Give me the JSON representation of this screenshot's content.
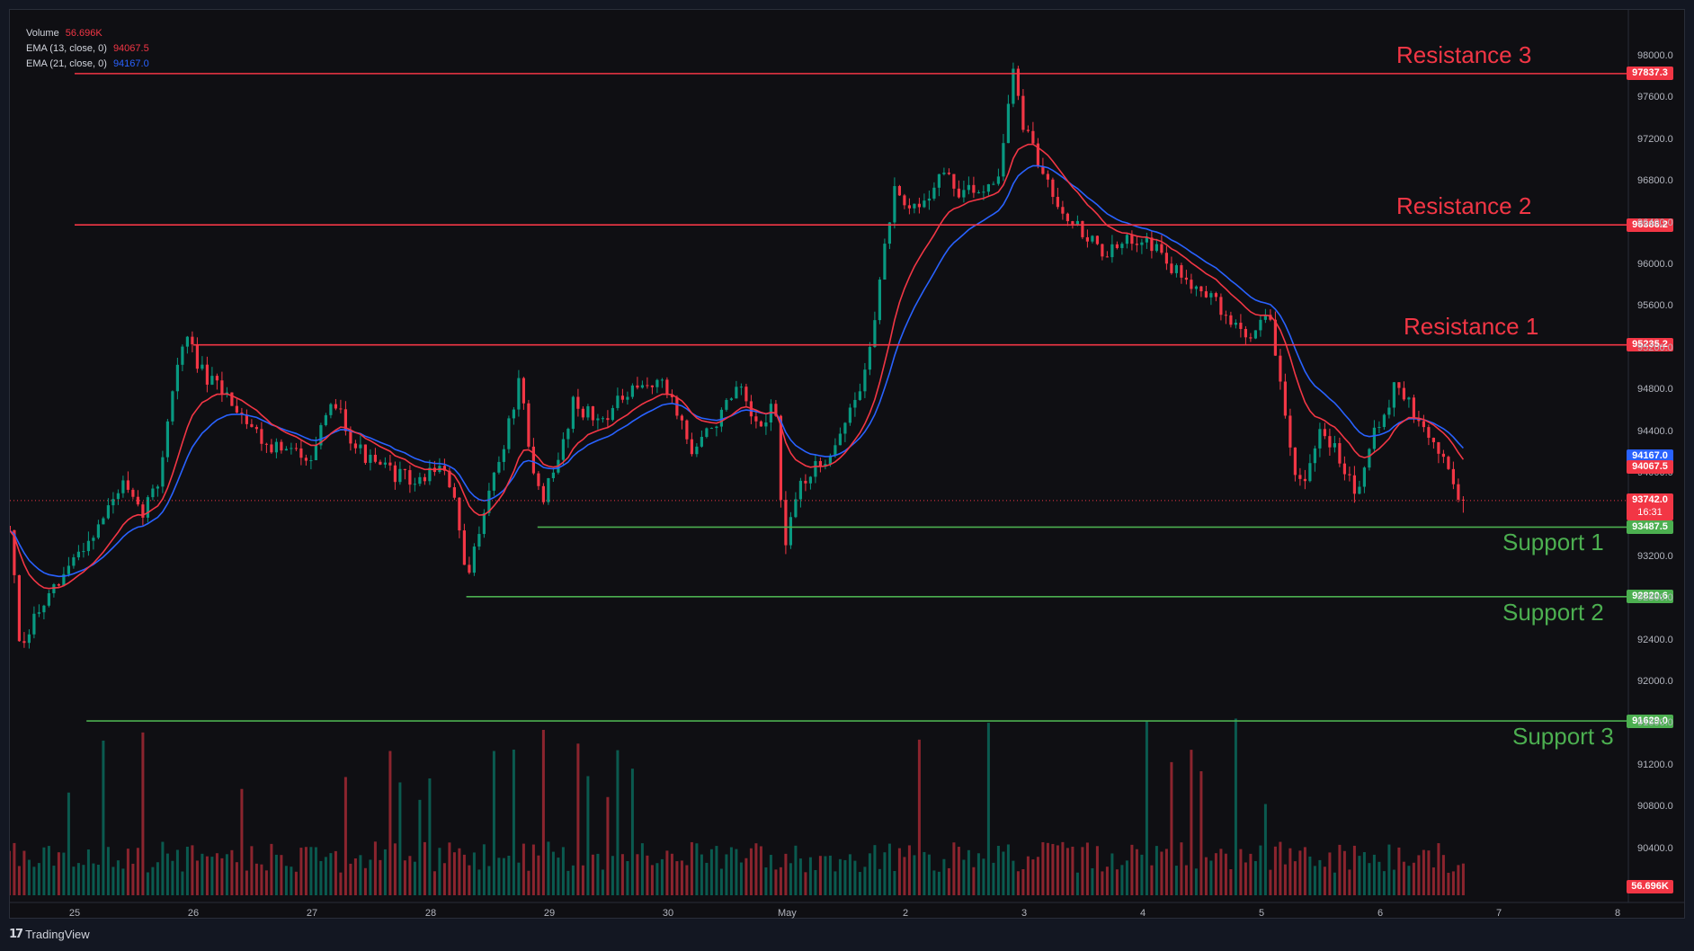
{
  "branding": {
    "logo_mark": "𝟭𝟳",
    "name": "TradingView"
  },
  "legend": [
    {
      "label": "Volume",
      "value": "56.696K",
      "color": "#f23645"
    },
    {
      "label": "EMA (13, close, 0)",
      "value": "94067.5",
      "color": "#f23645"
    },
    {
      "label": "EMA (21, close, 0)",
      "value": "94167.0",
      "color": "#2962ff"
    }
  ],
  "colors": {
    "up": "#089981",
    "down": "#f23645",
    "resistance": "#f23645",
    "support": "#4caf50",
    "ema13": "#f23645",
    "ema21": "#2962ff"
  },
  "chart_data": {
    "type": "candlestick",
    "x_ticks": [
      "25",
      "26",
      "27",
      "28",
      "29",
      "30",
      "May",
      "2",
      "3",
      "4",
      "5",
      "6",
      "7",
      "8"
    ],
    "y_ticks": [
      "98000.0",
      "97600.0",
      "97200.0",
      "96800.0",
      "96400.0",
      "96000.0",
      "95600.0",
      "95200.0",
      "94800.0",
      "94400.0",
      "94000.0",
      "93600.0",
      "93200.0",
      "92800.0",
      "92400.0",
      "92000.0",
      "91600.0",
      "91200.0",
      "90800.0",
      "90400.0"
    ],
    "ylim": [
      90000,
      98100
    ],
    "levels": [
      {
        "name": "Resistance 3",
        "value": 97837.3,
        "tag": "97837.3",
        "kind": "resistance",
        "start_day": 0.0
      },
      {
        "name": "Resistance 2",
        "value": 96386.2,
        "tag": "96386.2",
        "kind": "resistance",
        "start_day": 0.0
      },
      {
        "name": "Resistance 1",
        "value": 95235.2,
        "tag": "95235.2",
        "kind": "resistance",
        "start_day": 1.0
      },
      {
        "name": "Support 1",
        "value": 93487.5,
        "tag": "93487.5",
        "kind": "support",
        "start_day": 3.9
      },
      {
        "name": "Support 2",
        "value": 92820.6,
        "tag": "92820.6",
        "kind": "support",
        "start_day": 3.3
      },
      {
        "name": "Support 3",
        "value": 91629.0,
        "tag": "91629.0",
        "kind": "support",
        "start_day": 0.1
      }
    ],
    "price_tags": [
      {
        "value": 94167.0,
        "text": "94167.0",
        "color": "#2962ff"
      },
      {
        "value": 94067.5,
        "text": "94067.5",
        "color": "#f23645"
      },
      {
        "value": 93742.0,
        "text": "93742.0",
        "text2": "16:31",
        "color": "#f23645"
      }
    ],
    "volume_tag": {
      "text": "56.696K",
      "color": "#f23645"
    },
    "last_price": 93742.0,
    "anchors": [
      [
        -0.55,
        93500
      ],
      [
        -0.45,
        92200
      ],
      [
        -0.35,
        92600
      ],
      [
        -0.15,
        92900
      ],
      [
        0.0,
        93200
      ],
      [
        0.2,
        93500
      ],
      [
        0.4,
        93900
      ],
      [
        0.55,
        93600
      ],
      [
        0.7,
        93900
      ],
      [
        0.85,
        95000
      ],
      [
        0.95,
        95300
      ],
      [
        1.1,
        94900
      ],
      [
        1.25,
        94800
      ],
      [
        1.4,
        94600
      ],
      [
        1.6,
        94300
      ],
      [
        1.8,
        94200
      ],
      [
        2.0,
        94200
      ],
      [
        2.2,
        94700
      ],
      [
        2.35,
        94300
      ],
      [
        2.5,
        94100
      ],
      [
        2.7,
        94000
      ],
      [
        2.9,
        93900
      ],
      [
        3.05,
        94100
      ],
      [
        3.2,
        93800
      ],
      [
        3.3,
        92900
      ],
      [
        3.45,
        93700
      ],
      [
        3.6,
        94200
      ],
      [
        3.75,
        94900
      ],
      [
        3.85,
        94000
      ],
      [
        3.95,
        93800
      ],
      [
        4.05,
        94000
      ],
      [
        4.2,
        94700
      ],
      [
        4.4,
        94500
      ],
      [
        4.6,
        94700
      ],
      [
        4.75,
        94800
      ],
      [
        4.9,
        94900
      ],
      [
        5.05,
        94700
      ],
      [
        5.2,
        94200
      ],
      [
        5.4,
        94500
      ],
      [
        5.6,
        94800
      ],
      [
        5.75,
        94400
      ],
      [
        5.9,
        94700
      ],
      [
        5.98,
        93200
      ],
      [
        6.1,
        93900
      ],
      [
        6.3,
        94100
      ],
      [
        6.5,
        94500
      ],
      [
        6.65,
        94900
      ],
      [
        6.75,
        95600
      ],
      [
        6.9,
        96700
      ],
      [
        7.0,
        96500
      ],
      [
        7.15,
        96600
      ],
      [
        7.3,
        96900
      ],
      [
        7.45,
        96700
      ],
      [
        7.6,
        96700
      ],
      [
        7.8,
        96900
      ],
      [
        7.9,
        97900
      ],
      [
        8.0,
        97300
      ],
      [
        8.15,
        96900
      ],
      [
        8.35,
        96500
      ],
      [
        8.5,
        96300
      ],
      [
        8.7,
        96100
      ],
      [
        8.85,
        96200
      ],
      [
        9.0,
        96300
      ],
      [
        9.15,
        96100
      ],
      [
        9.3,
        95900
      ],
      [
        9.5,
        95800
      ],
      [
        9.7,
        95500
      ],
      [
        9.9,
        95300
      ],
      [
        10.05,
        95600
      ],
      [
        10.15,
        94900
      ],
      [
        10.25,
        94200
      ],
      [
        10.35,
        93800
      ],
      [
        10.5,
        94400
      ],
      [
        10.65,
        94200
      ],
      [
        10.8,
        93800
      ],
      [
        10.9,
        94300
      ],
      [
        11.0,
        94500
      ],
      [
        11.15,
        94900
      ],
      [
        11.3,
        94500
      ],
      [
        11.45,
        94300
      ],
      [
        11.55,
        94100
      ],
      [
        11.7,
        93700
      ]
    ]
  }
}
